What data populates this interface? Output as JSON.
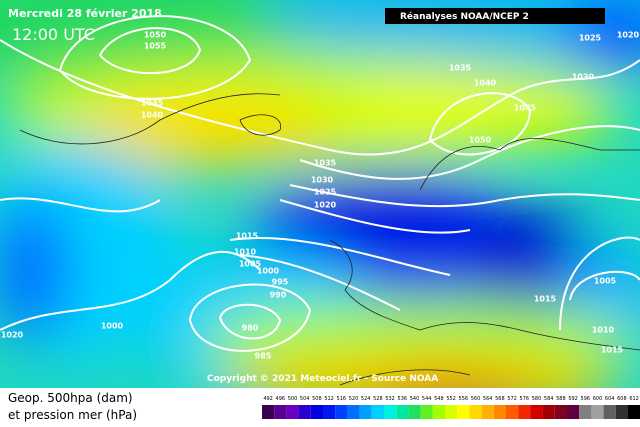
{
  "header": {
    "date": "Mercredi 28 février 2018",
    "time": "12:00 UTC",
    "source": "Réanalyses NOAA/NCEP 2"
  },
  "isobar_labels": [
    "1050",
    "1055",
    "1045",
    "1040",
    "1035",
    "1040",
    "1030",
    "1025",
    "1020",
    "1045",
    "1050",
    "1035",
    "1030",
    "1025",
    "1020",
    "1015",
    "1010",
    "1005",
    "1000",
    "995",
    "990",
    "980",
    "985",
    "1000",
    "1020",
    "1015",
    "1005",
    "1010",
    "1015"
  ],
  "copyright": "Copyright © 2021 Meteociel.fr - Source NOAA",
  "legend": {
    "line1": "Geop. 500hpa (dam)",
    "line2": "et pression mer (hPa)",
    "values": [
      492,
      496,
      500,
      504,
      508,
      512,
      516,
      520,
      524,
      528,
      532,
      536,
      540,
      544,
      548,
      552,
      556,
      560,
      564,
      568,
      572,
      576,
      580,
      584,
      588,
      592,
      596,
      600,
      604,
      608,
      612
    ],
    "colors": [
      "#3a0050",
      "#5a0090",
      "#6a00c0",
      "#2800d0",
      "#0000e0",
      "#0018f0",
      "#0040ff",
      "#0070ff",
      "#00a0ff",
      "#00d0ff",
      "#00f0e0",
      "#00e8a0",
      "#20e060",
      "#60f020",
      "#a0ff00",
      "#d8ff00",
      "#ffff00",
      "#ffd800",
      "#ffb000",
      "#ff8800",
      "#ff5a00",
      "#f02800",
      "#d00000",
      "#a00000",
      "#800020",
      "#600040",
      "#808080",
      "#a0a0a0",
      "#606060",
      "#303030",
      "#000000"
    ]
  }
}
